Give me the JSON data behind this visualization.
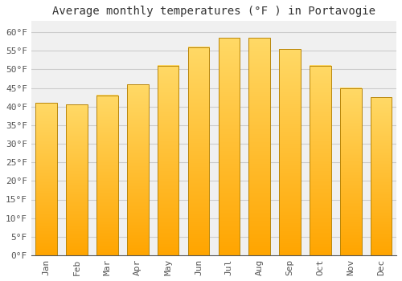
{
  "title": "Average monthly temperatures (°F ) in Portavogie",
  "months": [
    "Jan",
    "Feb",
    "Mar",
    "Apr",
    "May",
    "Jun",
    "Jul",
    "Aug",
    "Sep",
    "Oct",
    "Nov",
    "Dec"
  ],
  "values": [
    41,
    40.5,
    43,
    46,
    51,
    56,
    58.5,
    58.5,
    55.5,
    51,
    45,
    42.5
  ],
  "bar_color_bottom": "#FFA500",
  "bar_color_top": "#FFD966",
  "bar_edge_color": "#B8860B",
  "background_color": "#FFFFFF",
  "plot_bg_color": "#F0F0F0",
  "ylim": [
    0,
    63
  ],
  "yticks": [
    0,
    5,
    10,
    15,
    20,
    25,
    30,
    35,
    40,
    45,
    50,
    55,
    60
  ],
  "ytick_labels": [
    "0°F",
    "5°F",
    "10°F",
    "15°F",
    "20°F",
    "25°F",
    "30°F",
    "35°F",
    "40°F",
    "45°F",
    "50°F",
    "55°F",
    "60°F"
  ],
  "title_fontsize": 10,
  "tick_fontsize": 8,
  "grid_color": "#CCCCCC",
  "bar_width": 0.7
}
